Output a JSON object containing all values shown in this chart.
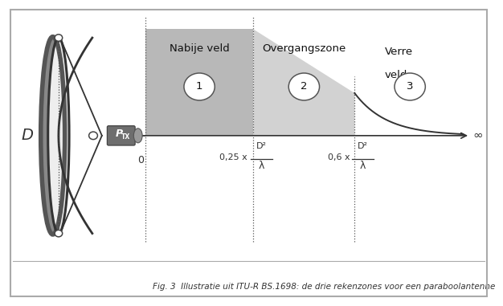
{
  "bg_color": "#ffffff",
  "border_color": "#bbbbbb",
  "fig_caption": "Fig. 3  Illustratie uit ITU-R BS.1698: de drie rekenzones voor een paraboolantenne",
  "zone1_color": "#b8b8b8",
  "zone2_color": "#d2d2d2",
  "ptx_color": "#777777",
  "ptx_cylinder_color": "#999999",
  "dish_face_color": "#eeeeee",
  "dish_rim_color": "#444444",
  "dish_back_color": "#888888",
  "label_zone1": "Nabije veld",
  "label_zone2": "Overgangszone",
  "label_zone3_line1": "Verre",
  "label_zone3_line2": "veld",
  "label_D": "D",
  "label_0": "0",
  "label_inf": "∞",
  "num1": "1",
  "num2": "2",
  "num3": "3",
  "caption_fontsize": 7.5,
  "zone_label_fontsize": 9.5,
  "axis_color": "#333333"
}
